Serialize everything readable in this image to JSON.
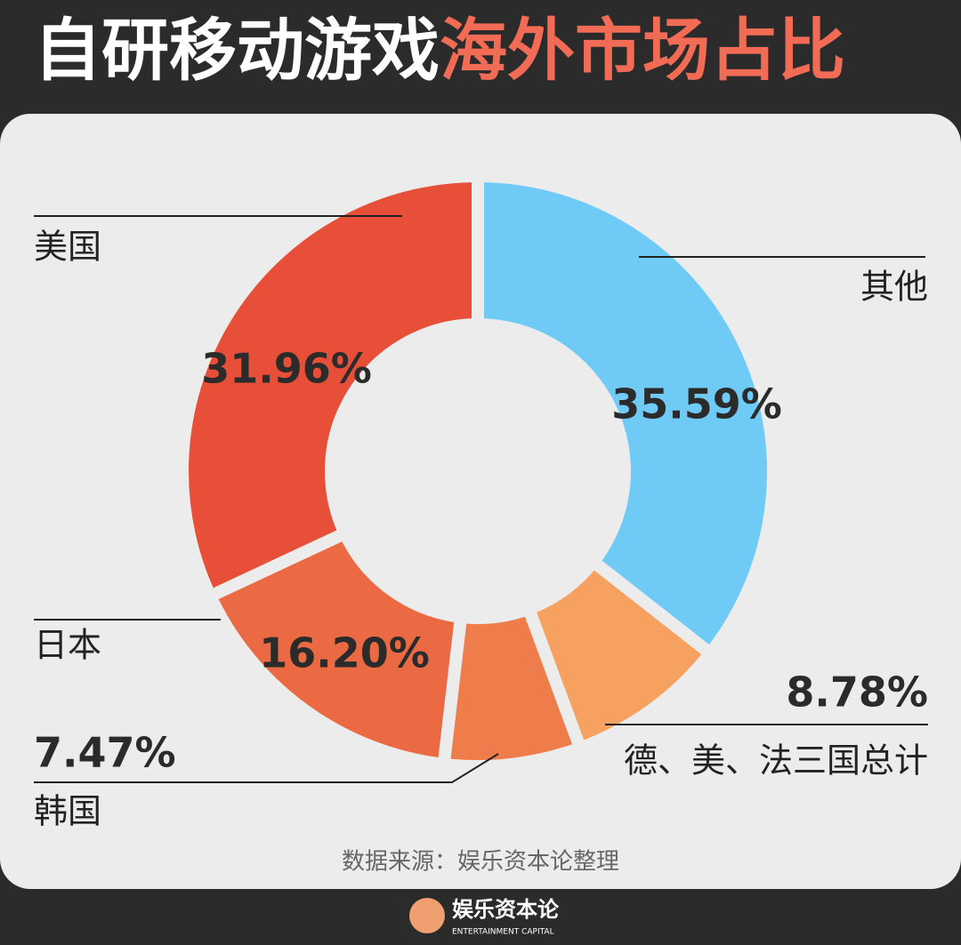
{
  "chart_data": {
    "type": "donut",
    "title": [
      "自研移动游戏",
      "海外市场占比"
    ],
    "categories": [
      "其他",
      "德、美、法三国总计",
      "韩国",
      "日本",
      "美国"
    ],
    "values": [
      35.59,
      8.78,
      7.47,
      16.2,
      31.96
    ],
    "value_labels": [
      "35.59%",
      "8.78%",
      "7.47%",
      "16.20%",
      "31.96%"
    ],
    "colors": [
      "#6fcbf6",
      "#f6a160",
      "#ef7d4b",
      "#eb6a44",
      "#e84f38"
    ],
    "source": "数据来源：娱乐资本论整理"
  },
  "footer": {
    "brand": "娱乐资本论",
    "brand_en": "ENTERTAINMENT CAPITAL"
  }
}
